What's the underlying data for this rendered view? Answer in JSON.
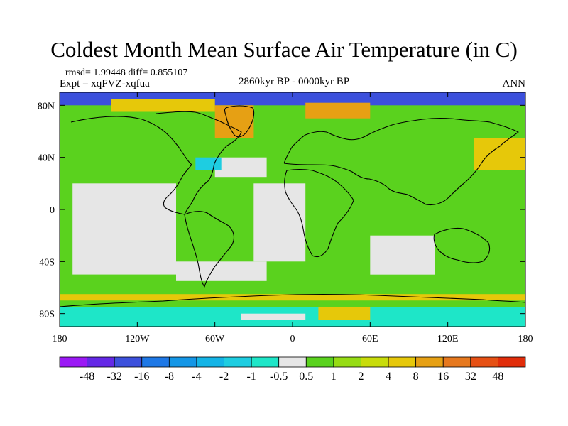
{
  "chart_data": {
    "type": "heatmap",
    "title": "Coldest Month Mean Surface Air Temperature (in C)",
    "stats_line": "rmsd= 1.99448 diff= 0.855107",
    "experiment": "Expt = xqFVZ-xqfua",
    "period": "2860kyr BP - 0000kyr BP",
    "season": "ANN",
    "x_ticks": [
      {
        "label": "180",
        "lon": -180
      },
      {
        "label": "120W",
        "lon": -120
      },
      {
        "label": "60W",
        "lon": -60
      },
      {
        "label": "0",
        "lon": 0
      },
      {
        "label": "60E",
        "lon": 60
      },
      {
        "label": "120E",
        "lon": 120
      },
      {
        "label": "180",
        "lon": 180
      }
    ],
    "y_ticks": [
      {
        "label": "80N",
        "lat": 80
      },
      {
        "label": "40N",
        "lat": 40
      },
      {
        "label": "0",
        "lat": 0
      },
      {
        "label": "40S",
        "lat": -40
      },
      {
        "label": "80S",
        "lat": -80
      }
    ],
    "xlim": [
      -180,
      180
    ],
    "ylim": [
      -90,
      90
    ],
    "colorbar": {
      "boundaries": [
        "-48",
        "-32",
        "-16",
        "-8",
        "-4",
        "-2",
        "-1",
        "-0.5",
        "0.5",
        "1",
        "2",
        "4",
        "8",
        "16",
        "32",
        "48"
      ],
      "colors": [
        "#9b19f5",
        "#6428e6",
        "#3c50dc",
        "#1e78e6",
        "#1496e6",
        "#14b4e6",
        "#1ecde1",
        "#1ee6c8",
        "#e6e6e6",
        "#5ad21e",
        "#96dc14",
        "#c8dc0a",
        "#e6c80a",
        "#e6a014",
        "#e6781e",
        "#e65014",
        "#e12d0a"
      ]
    },
    "field": [
      {
        "lat": [
          80,
          90
        ],
        "lon": [
          -180,
          180
        ],
        "level": 2
      },
      {
        "lat": [
          75,
          85
        ],
        "lon": [
          -140,
          -60
        ],
        "level": 12
      },
      {
        "lat": [
          55,
          80
        ],
        "lon": [
          -60,
          -30
        ],
        "level": 13
      },
      {
        "lat": [
          70,
          82
        ],
        "lon": [
          10,
          60
        ],
        "level": 13
      },
      {
        "lat": [
          30,
          55
        ],
        "lon": [
          140,
          180
        ],
        "level": 12
      },
      {
        "lat": [
          25,
          40
        ],
        "lon": [
          -60,
          -20
        ],
        "level": 8
      },
      {
        "lat": [
          30,
          40
        ],
        "lon": [
          -75,
          -55
        ],
        "level": 6
      },
      {
        "lat": [
          -50,
          20
        ],
        "lon": [
          -170,
          -90
        ],
        "level": 8
      },
      {
        "lat": [
          -40,
          20
        ],
        "lon": [
          -30,
          10
        ],
        "level": 8
      },
      {
        "lat": [
          -50,
          -20
        ],
        "lon": [
          60,
          110
        ],
        "level": 8
      },
      {
        "lat": [
          -55,
          -40
        ],
        "lon": [
          -90,
          -20
        ],
        "level": 8
      },
      {
        "lat": [
          -70,
          -65
        ],
        "lon": [
          -180,
          180
        ],
        "level": 12
      },
      {
        "lat": [
          -75,
          -70
        ],
        "lon": [
          -180,
          180
        ],
        "level": 9
      },
      {
        "lat": [
          -90,
          -75
        ],
        "lon": [
          -180,
          180
        ],
        "level": 7
      },
      {
        "lat": [
          -85,
          -80
        ],
        "lon": [
          -40,
          10
        ],
        "level": 8
      },
      {
        "lat": [
          -85,
          -75
        ],
        "lon": [
          20,
          60
        ],
        "level": 12
      }
    ]
  }
}
